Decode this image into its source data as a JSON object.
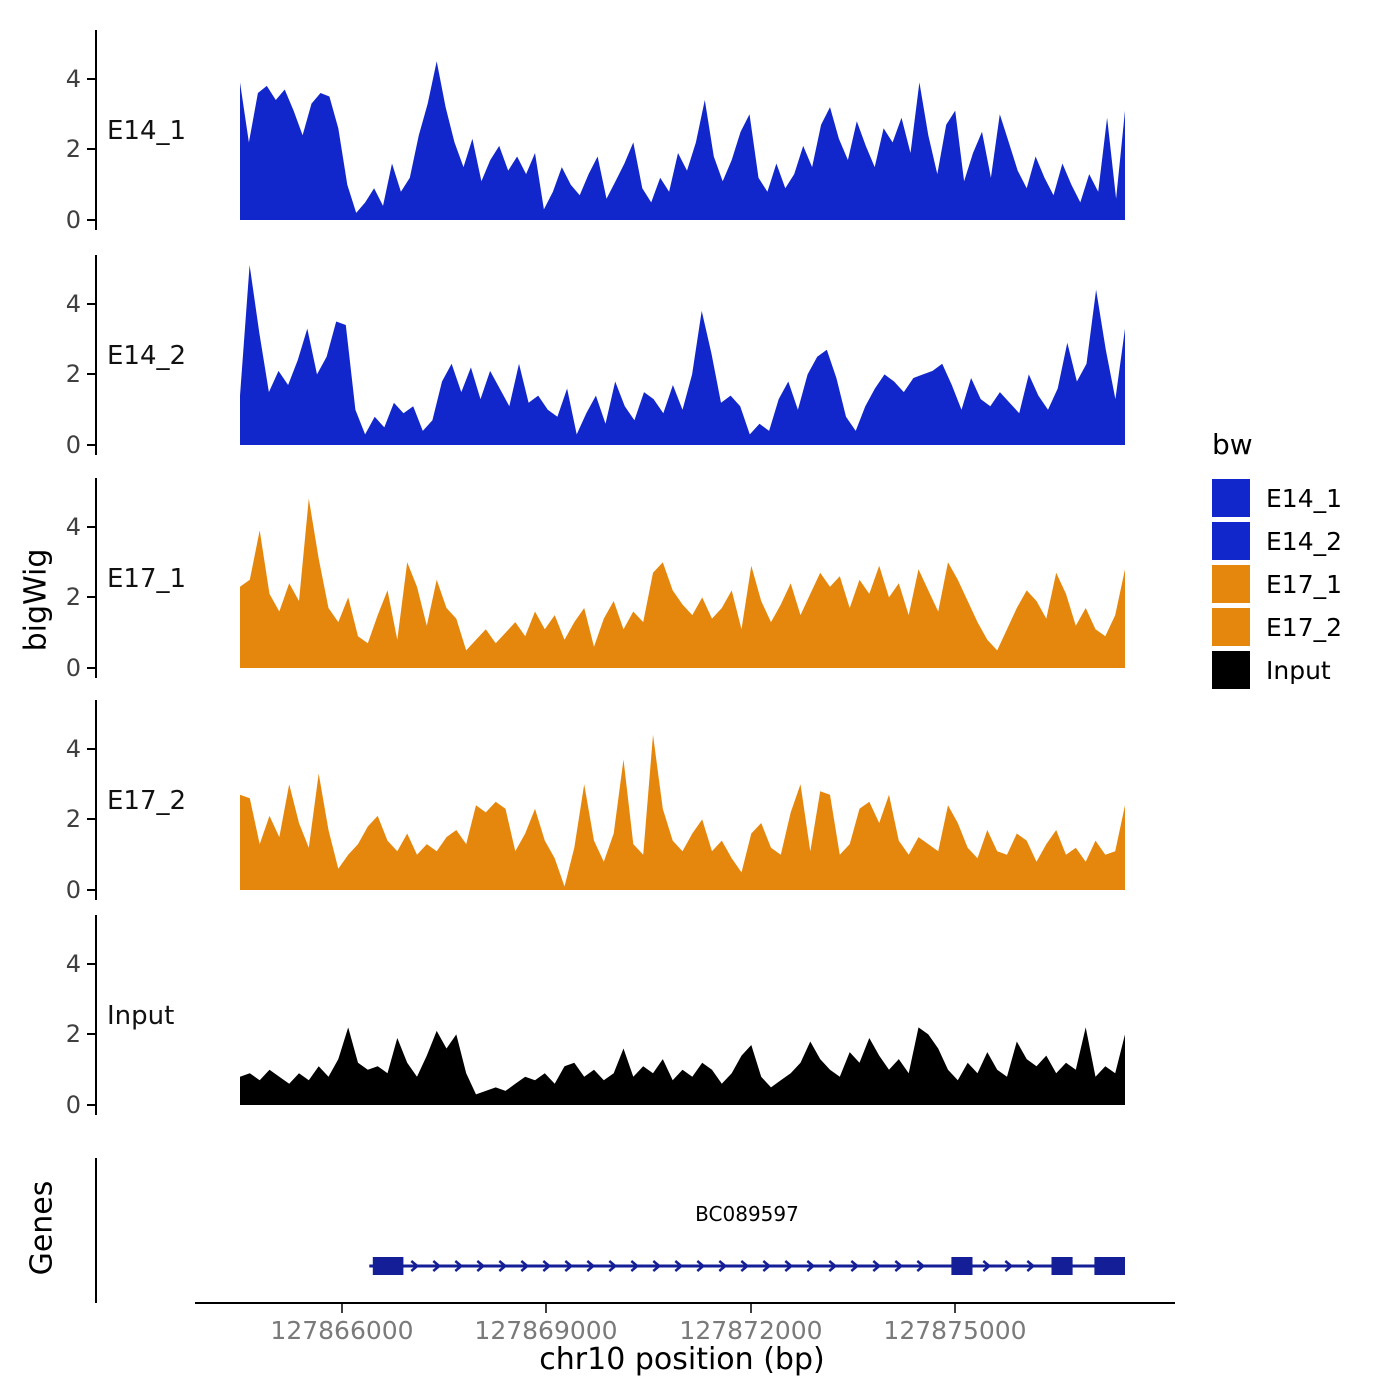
{
  "chart_data": {
    "type": "area",
    "title": "",
    "xlabel": "chr10 position (bp)",
    "ylabel": "bigWig",
    "x_range": [
      127864500,
      127877500
    ],
    "x_ticks": [
      127866000,
      127869000,
      127872000,
      127875000
    ],
    "ylim": [
      0,
      5.3
    ],
    "y_ticks": [
      0,
      2,
      4
    ],
    "grid": false,
    "legend_position": "right",
    "facets": [
      {
        "name": "E14_1",
        "color": "#1227CB",
        "values": [
          3.9,
          2.2,
          3.6,
          3.8,
          3.4,
          3.7,
          3.1,
          2.4,
          3.3,
          3.6,
          3.5,
          2.6,
          1.0,
          0.2,
          0.5,
          0.9,
          0.4,
          1.6,
          0.8,
          1.2,
          2.4,
          3.3,
          4.5,
          3.2,
          2.2,
          1.5,
          2.3,
          1.1,
          1.7,
          2.1,
          1.4,
          1.8,
          1.3,
          1.9,
          0.3,
          0.8,
          1.5,
          1.0,
          0.7,
          1.3,
          1.8,
          0.6,
          1.1,
          1.6,
          2.2,
          0.9,
          0.5,
          1.2,
          0.8,
          1.9,
          1.4,
          2.2,
          3.4,
          1.8,
          1.1,
          1.7,
          2.5,
          3.0,
          1.2,
          0.8,
          1.6,
          0.9,
          1.3,
          2.1,
          1.5,
          2.7,
          3.2,
          2.3,
          1.7,
          2.8,
          2.1,
          1.5,
          2.6,
          2.2,
          2.9,
          1.9,
          3.9,
          2.4,
          1.3,
          2.7,
          3.1,
          1.1,
          1.9,
          2.5,
          1.2,
          3.0,
          2.2,
          1.4,
          0.9,
          1.8,
          1.2,
          0.7,
          1.6,
          1.0,
          0.5,
          1.3,
          0.8,
          2.9,
          0.6,
          3.1
        ]
      },
      {
        "name": "E14_2",
        "color": "#1227CB",
        "values": [
          1.4,
          5.1,
          3.2,
          1.5,
          2.1,
          1.7,
          2.4,
          3.3,
          2.0,
          2.5,
          3.5,
          3.4,
          1.0,
          0.3,
          0.8,
          0.5,
          1.2,
          0.9,
          1.1,
          0.4,
          0.7,
          1.8,
          2.3,
          1.5,
          2.2,
          1.3,
          2.1,
          1.6,
          1.1,
          2.3,
          1.2,
          1.4,
          1.0,
          0.8,
          1.6,
          0.3,
          0.9,
          1.4,
          0.6,
          1.8,
          1.1,
          0.7,
          1.5,
          1.3,
          0.9,
          1.7,
          1.0,
          2.0,
          3.8,
          2.6,
          1.2,
          1.4,
          1.1,
          0.3,
          0.6,
          0.4,
          1.3,
          1.8,
          1.0,
          2.0,
          2.5,
          2.7,
          1.9,
          0.8,
          0.4,
          1.1,
          1.6,
          2.0,
          1.8,
          1.5,
          1.9,
          2.0,
          2.1,
          2.3,
          1.7,
          1.0,
          1.9,
          1.3,
          1.1,
          1.5,
          1.2,
          0.9,
          2.0,
          1.4,
          1.0,
          1.6,
          2.9,
          1.8,
          2.3,
          4.4,
          2.7,
          1.3,
          3.3
        ]
      },
      {
        "name": "E17_1",
        "color": "#E6870D",
        "values": [
          2.3,
          2.5,
          3.9,
          2.1,
          1.6,
          2.4,
          1.9,
          4.8,
          3.1,
          1.7,
          1.3,
          2.0,
          0.9,
          0.7,
          1.5,
          2.2,
          0.8,
          3.0,
          2.3,
          1.2,
          2.5,
          1.7,
          1.4,
          0.5,
          0.8,
          1.1,
          0.7,
          1.0,
          1.3,
          0.9,
          1.6,
          1.1,
          1.5,
          0.8,
          1.3,
          1.7,
          0.6,
          1.4,
          1.9,
          1.1,
          1.6,
          1.3,
          2.7,
          3.0,
          2.2,
          1.8,
          1.5,
          2.0,
          1.4,
          1.7,
          2.2,
          1.1,
          2.9,
          1.9,
          1.3,
          1.8,
          2.4,
          1.5,
          2.1,
          2.7,
          2.3,
          2.6,
          1.7,
          2.5,
          2.1,
          2.9,
          2.0,
          2.4,
          1.5,
          2.8,
          2.2,
          1.6,
          3.0,
          2.5,
          1.9,
          1.3,
          0.8,
          0.5,
          1.1,
          1.7,
          2.2,
          1.9,
          1.4,
          2.7,
          2.1,
          1.2,
          1.7,
          1.1,
          0.9,
          1.5,
          2.8
        ]
      },
      {
        "name": "E17_2",
        "color": "#E6870D",
        "values": [
          2.7,
          2.6,
          1.3,
          2.1,
          1.5,
          3.0,
          1.9,
          1.2,
          3.3,
          1.7,
          0.6,
          1.0,
          1.3,
          1.8,
          2.1,
          1.4,
          1.1,
          1.6,
          1.0,
          1.3,
          1.1,
          1.5,
          1.7,
          1.3,
          2.4,
          2.2,
          2.5,
          2.3,
          1.1,
          1.6,
          2.3,
          1.4,
          0.9,
          0.1,
          1.2,
          3.0,
          1.4,
          0.8,
          1.6,
          3.7,
          1.3,
          1.0,
          4.4,
          2.3,
          1.4,
          1.1,
          1.6,
          2.0,
          1.1,
          1.4,
          0.9,
          0.5,
          1.6,
          1.9,
          1.2,
          1.0,
          2.2,
          3.0,
          1.1,
          2.8,
          2.7,
          1.0,
          1.3,
          2.3,
          2.5,
          1.9,
          2.7,
          1.4,
          1.0,
          1.5,
          1.3,
          1.1,
          2.4,
          1.9,
          1.2,
          0.9,
          1.7,
          1.1,
          1.0,
          1.6,
          1.4,
          0.8,
          1.3,
          1.7,
          1.0,
          1.2,
          0.8,
          1.4,
          1.0,
          1.1,
          2.4
        ]
      },
      {
        "name": "Input",
        "color": "#000000",
        "values": [
          0.8,
          0.9,
          0.7,
          1.0,
          0.8,
          0.6,
          0.9,
          0.7,
          1.1,
          0.8,
          1.3,
          2.2,
          1.2,
          1.0,
          1.1,
          0.9,
          1.9,
          1.2,
          0.8,
          1.4,
          2.1,
          1.6,
          2.0,
          0.9,
          0.3,
          0.4,
          0.5,
          0.4,
          0.6,
          0.8,
          0.7,
          0.9,
          0.6,
          1.1,
          1.2,
          0.8,
          1.0,
          0.7,
          0.9,
          1.6,
          0.8,
          1.1,
          0.9,
          1.3,
          0.7,
          1.0,
          0.8,
          1.2,
          1.0,
          0.6,
          0.9,
          1.4,
          1.7,
          0.8,
          0.5,
          0.7,
          0.9,
          1.2,
          1.8,
          1.3,
          1.0,
          0.8,
          1.5,
          1.2,
          1.9,
          1.4,
          1.0,
          1.3,
          0.9,
          2.2,
          2.0,
          1.6,
          1.0,
          0.7,
          1.2,
          0.9,
          1.5,
          1.0,
          0.8,
          1.8,
          1.3,
          1.1,
          1.4,
          0.9,
          1.2,
          1.0,
          2.2,
          0.8,
          1.1,
          0.9,
          2.0
        ]
      }
    ],
    "genes_track": {
      "panel_label": "Genes",
      "gene": {
        "name": "BC089597",
        "color": "#141E96",
        "start": 127866400,
        "end": 127877500,
        "strand": "+",
        "exons": [
          [
            127866450,
            127866900
          ],
          [
            127874950,
            127875260
          ],
          [
            127876420,
            127876730
          ],
          [
            127877050,
            127877500
          ]
        ]
      }
    },
    "legend": {
      "title": "bw",
      "items": [
        {
          "label": "E14_1",
          "color": "#1227CB"
        },
        {
          "label": "E14_2",
          "color": "#1227CB"
        },
        {
          "label": "E17_1",
          "color": "#E6870D"
        },
        {
          "label": "E17_2",
          "color": "#E6870D"
        },
        {
          "label": "Input",
          "color": "#000000"
        }
      ]
    }
  }
}
